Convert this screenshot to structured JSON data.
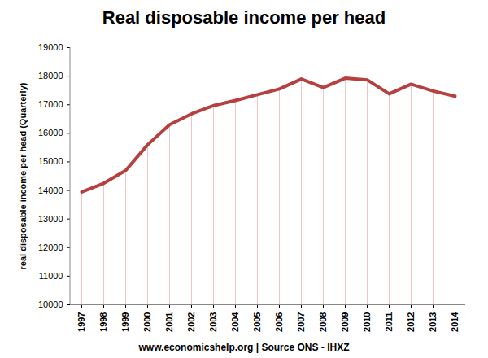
{
  "chart_data": {
    "type": "line",
    "title": "Real disposable income per head",
    "y_label": "real disposable income per head (Quarterly)",
    "caption": "www.economicshelp.org | Source ONS - IHXZ",
    "categories": [
      "1997",
      "1998",
      "1999",
      "2000",
      "2001",
      "2002",
      "2003",
      "2004",
      "2005",
      "2006",
      "2007",
      "2008",
      "2009",
      "2010",
      "2011",
      "2012",
      "2013",
      "2014"
    ],
    "values": [
      13950,
      14250,
      14700,
      15600,
      16300,
      16680,
      16970,
      17150,
      17350,
      17550,
      17900,
      17600,
      17930,
      17870,
      17380,
      17720,
      17480,
      17300
    ],
    "color": "#b5403f",
    "ylim": [
      10000,
      19000
    ],
    "yticks": [
      10000,
      11000,
      12000,
      13000,
      14000,
      15000,
      16000,
      17000,
      18000,
      19000
    ]
  }
}
